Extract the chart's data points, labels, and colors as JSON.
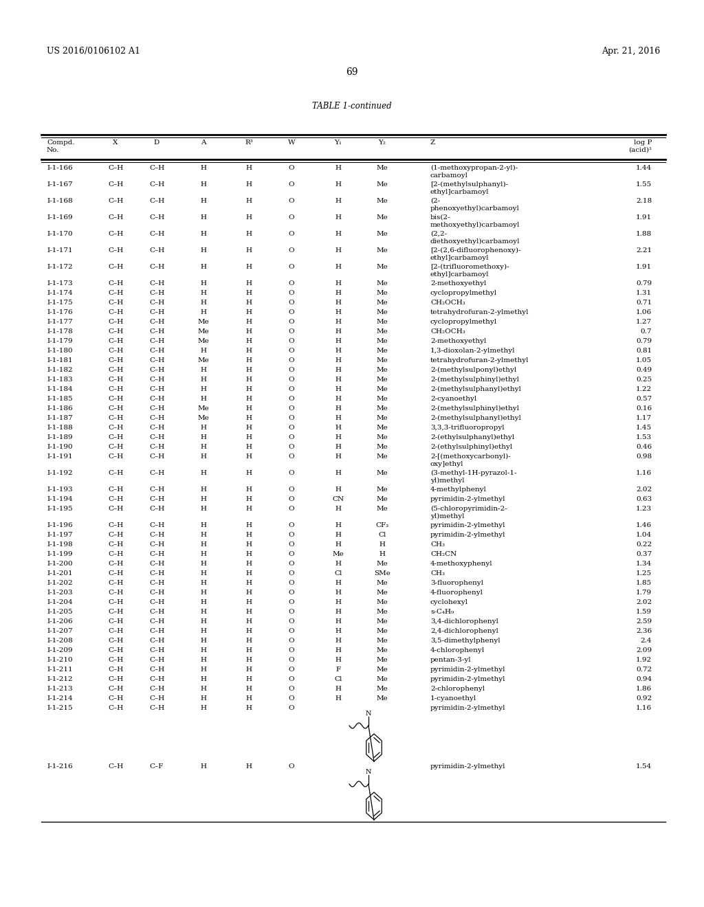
{
  "patent_left": "US 2016/0106102 A1",
  "patent_right": "Apr. 21, 2016",
  "page_number": "69",
  "table_title": "TABLE 1-continued",
  "rows": [
    [
      "I-1-166",
      "C–H",
      "C–H",
      "H",
      "O",
      "H",
      "Me",
      "(1-methoxypropan-2-yl)-\ncarbamoyl",
      "1.44"
    ],
    [
      "I-1-167",
      "C–H",
      "C–H",
      "H",
      "O",
      "H",
      "Me",
      "[2-(methylsulphanyl)-\nethyl]carbamoyl",
      "1.55"
    ],
    [
      "I-1-168",
      "C–H",
      "C–H",
      "H",
      "O",
      "H",
      "Me",
      "(2-\nphenoxyethyl)carbamoyl",
      "2.18"
    ],
    [
      "I-1-169",
      "C–H",
      "C–H",
      "H",
      "O",
      "H",
      "Me",
      "bis(2-\nmethoxyethyl)carbamoyl",
      "1.91"
    ],
    [
      "I-1-170",
      "C–H",
      "C–H",
      "H",
      "O",
      "H",
      "Me",
      "(2,2-\ndiethoxyethyl)carbamoyl",
      "1.88"
    ],
    [
      "I-1-171",
      "C–H",
      "C–H",
      "H",
      "O",
      "H",
      "Me",
      "[2-(2,6-difluorophenoxy)-\nethyl]carbamoyl",
      "2.21"
    ],
    [
      "I-1-172",
      "C–H",
      "C–H",
      "H",
      "O",
      "H",
      "Me",
      "[2-(trifluoromethoxy)-\nethyl]carbamoyl",
      "1.91"
    ],
    [
      "I-1-173",
      "C–H",
      "C–H",
      "H",
      "O",
      "H",
      "Me",
      "2-methoxyethyl",
      "0.79"
    ],
    [
      "I-1-174",
      "C–H",
      "C–H",
      "H",
      "O",
      "H",
      "Me",
      "cyclopropylmethyl",
      "1.31"
    ],
    [
      "I-1-175",
      "C–H",
      "C–H",
      "H",
      "O",
      "H",
      "Me",
      "CH₂OCH₃",
      "0.71"
    ],
    [
      "I-1-176",
      "C–H",
      "C–H",
      "H",
      "O",
      "H",
      "Me",
      "tetrahydrofuran-2-ylmethyl",
      "1.06"
    ],
    [
      "I-1-177",
      "C–H",
      "C–H",
      "Me",
      "O",
      "H",
      "Me",
      "cyclopropylmethyl",
      "1.27"
    ],
    [
      "I-1-178",
      "C–H",
      "C–H",
      "Me",
      "O",
      "H",
      "Me",
      "CH₂OCH₃",
      "0.7"
    ],
    [
      "I-1-179",
      "C–H",
      "C–H",
      "Me",
      "O",
      "H",
      "Me",
      "2-methoxyethyl",
      "0.79"
    ],
    [
      "I-1-180",
      "C–H",
      "C–H",
      "H",
      "O",
      "H",
      "Me",
      "1,3-dioxolan-2-ylmethyl",
      "0.81"
    ],
    [
      "I-1-181",
      "C–H",
      "C–H",
      "Me",
      "O",
      "H",
      "Me",
      "tetrahydrofuran-2-ylmethyl",
      "1.05"
    ],
    [
      "I-1-182",
      "C–H",
      "C–H",
      "H",
      "O",
      "H",
      "Me",
      "2-(methylsulponyl)ethyl",
      "0.49"
    ],
    [
      "I-1-183",
      "C–H",
      "C–H",
      "H",
      "O",
      "H",
      "Me",
      "2-(methylsulphinyl)ethyl",
      "0.25"
    ],
    [
      "I-1-184",
      "C–H",
      "C–H",
      "H",
      "O",
      "H",
      "Me",
      "2-(methylsulphanyl)ethyl",
      "1.22"
    ],
    [
      "I-1-185",
      "C–H",
      "C–H",
      "H",
      "O",
      "H",
      "Me",
      "2-cyanoethyl",
      "0.57"
    ],
    [
      "I-1-186",
      "C–H",
      "C–H",
      "Me",
      "O",
      "H",
      "Me",
      "2-(methylsulphinyl)ethyl",
      "0.16"
    ],
    [
      "I-1-187",
      "C–H",
      "C–H",
      "Me",
      "O",
      "H",
      "Me",
      "2-(methylsulphanyl)ethyl",
      "1.17"
    ],
    [
      "I-1-188",
      "C–H",
      "C–H",
      "H",
      "O",
      "H",
      "Me",
      "3,3,3-trifluoropropyl",
      "1.45"
    ],
    [
      "I-1-189",
      "C–H",
      "C–H",
      "H",
      "O",
      "H",
      "Me",
      "2-(ethylsulphanyl)ethyl",
      "1.53"
    ],
    [
      "I-1-190",
      "C–H",
      "C–H",
      "H",
      "O",
      "H",
      "Me",
      "2-(ethylsulphinyl)ethyl",
      "0.46"
    ],
    [
      "I-1-191",
      "C–H",
      "C–H",
      "H",
      "O",
      "H",
      "Me",
      "2-[(methoxycarbonyl)-\noxy]ethyl",
      "0.98"
    ],
    [
      "I-1-192",
      "C–H",
      "C–H",
      "H",
      "O",
      "H",
      "Me",
      "(3-methyl-1H-pyrazol-1-\nyl)methyl",
      "1.16"
    ],
    [
      "I-1-193",
      "C–H",
      "C–H",
      "H",
      "O",
      "H",
      "Me",
      "4-methylphenyl",
      "2.02"
    ],
    [
      "I-1-194",
      "C–H",
      "C–H",
      "H",
      "O",
      "CN",
      "Me",
      "pyrimidin-2-ylmethyl",
      "0.63"
    ],
    [
      "I-1-195",
      "C–H",
      "C–H",
      "H",
      "O",
      "H",
      "Me",
      "(5-chloropyrimidin-2-\nyl)methyl",
      "1.23"
    ],
    [
      "I-1-196",
      "C–H",
      "C–H",
      "H",
      "O",
      "H",
      "CF₃",
      "pyrimidin-2-ylmethyl",
      "1.46"
    ],
    [
      "I-1-197",
      "C–H",
      "C–H",
      "H",
      "O",
      "H",
      "Cl",
      "pyrimidin-2-ylmethyl",
      "1.04"
    ],
    [
      "I-1-198",
      "C–H",
      "C–H",
      "H",
      "O",
      "H",
      "H",
      "CH₃",
      "0.22"
    ],
    [
      "I-1-199",
      "C–H",
      "C–H",
      "H",
      "O",
      "Me",
      "H",
      "CH₂CN",
      "0.37"
    ],
    [
      "I-1-200",
      "C–H",
      "C–H",
      "H",
      "O",
      "H",
      "Me",
      "4-methoxyphenyl",
      "1.34"
    ],
    [
      "I-1-201",
      "C–H",
      "C–H",
      "H",
      "O",
      "Cl",
      "SMe",
      "CH₃",
      "1.25"
    ],
    [
      "I-1-202",
      "C–H",
      "C–H",
      "H",
      "O",
      "H",
      "Me",
      "3-fluorophenyl",
      "1.85"
    ],
    [
      "I-1-203",
      "C–H",
      "C–H",
      "H",
      "O",
      "H",
      "Me",
      "4-fluorophenyl",
      "1.79"
    ],
    [
      "I-1-204",
      "C–H",
      "C–H",
      "H",
      "O",
      "H",
      "Me",
      "cyclohexyl",
      "2.02"
    ],
    [
      "I-1-205",
      "C–H",
      "C–H",
      "H",
      "O",
      "H",
      "Me",
      "s-C₄H₉",
      "1.59"
    ],
    [
      "I-1-206",
      "C–H",
      "C–H",
      "H",
      "O",
      "H",
      "Me",
      "3,4-dichlorophenyl",
      "2.59"
    ],
    [
      "I-1-207",
      "C–H",
      "C–H",
      "H",
      "O",
      "H",
      "Me",
      "2,4-dichlorophenyl",
      "2.36"
    ],
    [
      "I-1-208",
      "C–H",
      "C–H",
      "H",
      "O",
      "H",
      "Me",
      "3,5-dimethylphenyl",
      "2.4"
    ],
    [
      "I-1-209",
      "C–H",
      "C–H",
      "H",
      "O",
      "H",
      "Me",
      "4-chlorophenyl",
      "2.09"
    ],
    [
      "I-1-210",
      "C–H",
      "C–H",
      "H",
      "O",
      "H",
      "Me",
      "pentan-3-yl",
      "1.92"
    ],
    [
      "I-1-211",
      "C–H",
      "C–H",
      "H",
      "O",
      "F",
      "Me",
      "pyrimidin-2-ylmethyl",
      "0.72"
    ],
    [
      "I-1-212",
      "C–H",
      "C–H",
      "H",
      "O",
      "Cl",
      "Me",
      "pyrimidin-2-ylmethyl",
      "0.94"
    ],
    [
      "I-1-213",
      "C–H",
      "C–H",
      "H",
      "O",
      "H",
      "Me",
      "2-chlorophenyl",
      "1.86"
    ],
    [
      "I-1-214",
      "C–H",
      "C–H",
      "H",
      "O",
      "H",
      "Me",
      "1-cyanoethyl",
      "0.92"
    ],
    [
      "I-1-215",
      "C–H",
      "C–H",
      "H",
      "O",
      "",
      "",
      "pyrimidin-2-ylmethyl",
      "1.16"
    ],
    [
      "I-1-216",
      "C–H",
      "C–F",
      "H",
      "O",
      "",
      "",
      "pyrimidin-2-ylmethyl",
      "1.54"
    ]
  ]
}
